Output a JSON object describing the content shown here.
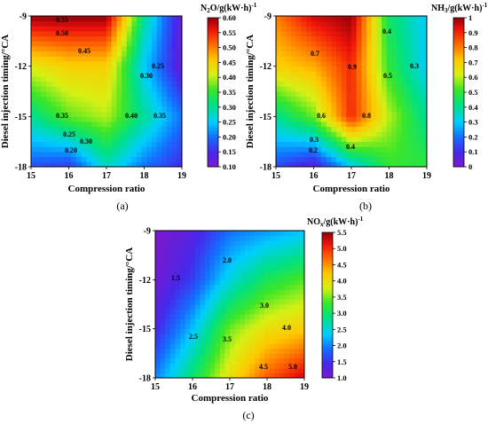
{
  "chart_data": [
    {
      "type": "heatmap",
      "panel_label": "(a)",
      "xlabel": "Compression ratio",
      "ylabel": "Diesel injection timing/°CA",
      "x": [
        15,
        16,
        17,
        18,
        19
      ],
      "y": [
        -18,
        -15,
        -12,
        -9
      ],
      "x_ticks": [
        "15",
        "16",
        "17",
        "18",
        "19"
      ],
      "y_ticks": [
        "-18",
        "-15",
        "-12",
        "-9"
      ],
      "xlim": [
        15,
        19
      ],
      "ylim": [
        -18,
        -9
      ],
      "z": [
        [
          0.18,
          0.16,
          0.28,
          0.2,
          0.15
        ],
        [
          0.3,
          0.37,
          0.4,
          0.3,
          0.2
        ],
        [
          0.42,
          0.45,
          0.45,
          0.25,
          0.12
        ],
        [
          0.6,
          0.6,
          0.6,
          0.3,
          0.12
        ]
      ],
      "colorbar": {
        "title": "N2O/g(kW·h)-1",
        "min": 0.1,
        "max": 0.6,
        "ticks": [
          "0.10",
          "0.15",
          "0.20",
          "0.25",
          "0.30",
          "0.35",
          "0.40",
          "0.45",
          "0.50",
          "0.55",
          "0.60"
        ]
      },
      "contour_labels": [
        "0.55",
        "0.50",
        "0.45",
        "0.25",
        "0.30",
        "0.35",
        "0.40",
        "0.35",
        "0.25",
        "0.30",
        "0.20"
      ]
    },
    {
      "type": "heatmap",
      "panel_label": "(b)",
      "xlabel": "Compression ratio",
      "ylabel": "Diesel injection timing/°CA",
      "x": [
        15,
        16,
        17,
        18,
        19
      ],
      "y": [
        -18,
        -15,
        -12,
        -9
      ],
      "x_ticks": [
        "15",
        "16",
        "17",
        "18",
        "19"
      ],
      "y_ticks": [
        "-18",
        "-15",
        "-12",
        "-9"
      ],
      "xlim": [
        15,
        19
      ],
      "ylim": [
        -18,
        -9
      ],
      "z": [
        [
          0.15,
          0.05,
          0.3,
          0.5,
          0.5
        ],
        [
          0.4,
          0.55,
          0.9,
          0.6,
          0.4
        ],
        [
          0.7,
          0.75,
          0.9,
          0.5,
          0.3
        ],
        [
          0.8,
          0.95,
          1.0,
          0.45,
          0.3
        ]
      ],
      "colorbar": {
        "title": "NH3/g(kW·h)-1",
        "min": 0,
        "max": 1,
        "ticks": [
          "0",
          "0.1",
          "0.2",
          "0.3",
          "0.4",
          "0.5",
          "0.6",
          "0.7",
          "0.8",
          "0.9",
          "1"
        ]
      },
      "contour_labels": [
        "0.4",
        "0.7",
        "0.9",
        "0.5",
        "0.3",
        "0.6",
        "0.8",
        "0.3",
        "0.4",
        "0.2"
      ]
    },
    {
      "type": "heatmap",
      "panel_label": "(c)",
      "xlabel": "Compression ratio",
      "ylabel": "Diesel injection timing/°CA",
      "x": [
        15,
        16,
        17,
        18,
        19
      ],
      "y": [
        -18,
        -15,
        -12,
        -9
      ],
      "x_ticks": [
        "15",
        "16",
        "17",
        "18",
        "19"
      ],
      "y_ticks": [
        "-18",
        "-15",
        "-12",
        "-9"
      ],
      "xlim": [
        15,
        19
      ],
      "ylim": [
        -18,
        -9
      ],
      "z": [
        [
          2.0,
          3.0,
          4.0,
          4.8,
          5.3
        ],
        [
          1.4,
          2.3,
          3.5,
          4.0,
          4.2
        ],
        [
          1.1,
          1.6,
          2.5,
          3.1,
          3.4
        ],
        [
          1.0,
          1.3,
          1.9,
          2.1,
          2.3
        ]
      ],
      "colorbar": {
        "title": "NOx/g(kW·h)-1",
        "min": 1.0,
        "max": 5.5,
        "ticks": [
          "1.0",
          "1.5",
          "2.0",
          "2.5",
          "3.0",
          "3.5",
          "4.0",
          "4.5",
          "5.0",
          "5.5"
        ]
      },
      "contour_labels": [
        "1.5",
        "2.0",
        "2.5",
        "3.0",
        "3.5",
        "4.0",
        "4.5",
        "5.0"
      ]
    }
  ]
}
